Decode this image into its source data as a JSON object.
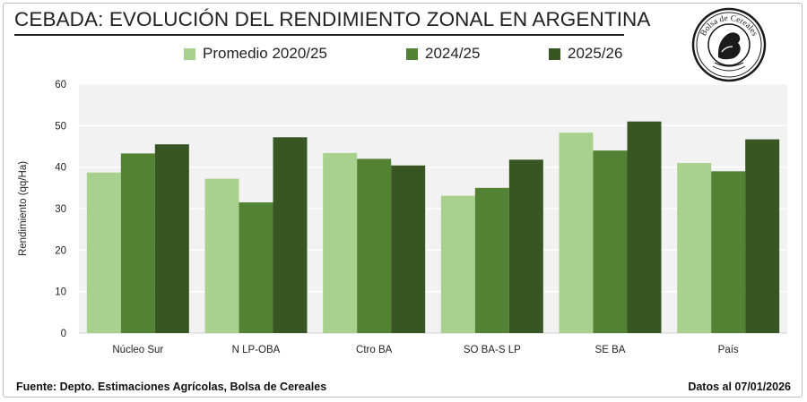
{
  "header": {
    "title": "CEBADA: EVOLUCIÓN DEL RENDIMIENTO ZONAL EN ARGENTINA"
  },
  "logo": {
    "text": "Bolsa de Cereales",
    "icon": "bolsa-de-cereales-seal"
  },
  "footer": {
    "source": "Fuente: Depto. Estimaciones Agrícolas, Bolsa de Cereales",
    "date": "Datos al 07/01/2026"
  },
  "chart_data": {
    "type": "bar",
    "title": "CEBADA: EVOLUCIÓN DEL RENDIMIENTO ZONAL EN ARGENTINA",
    "xlabel": "",
    "ylabel": "Rendimiento (qq/Ha)",
    "ylim": [
      0,
      60
    ],
    "yticks": [
      0,
      10,
      20,
      30,
      40,
      50,
      60
    ],
    "grid": true,
    "legend_position": "top",
    "categories": [
      "Núcleo Sur",
      "N LP-OBA",
      "Ctro BA",
      "SO BA-S LP",
      "SE BA",
      "País"
    ],
    "series": [
      {
        "name": "Promedio 2020/25",
        "color": "#a9d18e",
        "values": [
          38.7,
          37.2,
          43.4,
          33.1,
          48.3,
          41.0
        ]
      },
      {
        "name": "2024/25",
        "color": "#548235",
        "values": [
          43.3,
          31.5,
          42.0,
          35.0,
          44.0,
          39.0
        ]
      },
      {
        "name": "2025/26",
        "color": "#375623",
        "values": [
          45.5,
          47.2,
          40.4,
          41.8,
          51.0,
          46.7
        ]
      }
    ],
    "plot_background": "#f2f2f2",
    "gridline_color": "#ffffff"
  }
}
